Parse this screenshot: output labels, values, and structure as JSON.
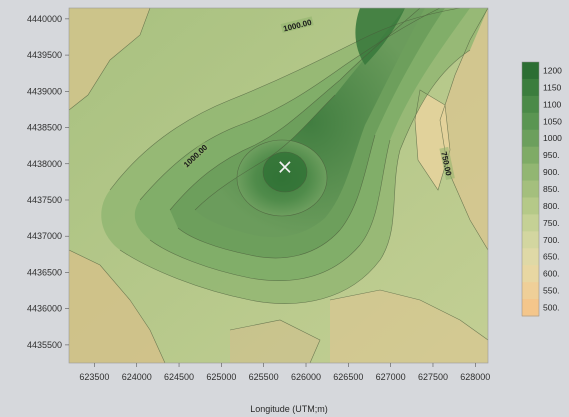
{
  "chart_data": {
    "type": "heatmap",
    "title": "",
    "xlabel": "Longitude (UTM;m)",
    "ylabel": "",
    "x_ticks": [
      "623500",
      "624000",
      "624500",
      "625000",
      "625500",
      "626000",
      "626500",
      "627000",
      "627500",
      "628000"
    ],
    "y_ticks": [
      "4440000",
      "4439500",
      "4439000",
      "4438500",
      "4438000",
      "4437500",
      "4437000",
      "4436500",
      "4436000",
      "4435500"
    ],
    "xlim": [
      623200,
      628150
    ],
    "ylim": [
      4435250,
      4440150
    ],
    "legend": {
      "placement": "right",
      "levels": [
        "1200",
        "1150",
        "1100",
        "1050",
        "1000",
        "950.",
        "900.",
        "850.",
        "800.",
        "750.",
        "700.",
        "650.",
        "600.",
        "550.",
        "500."
      ],
      "colors": [
        "#2c6e33",
        "#3b7d3d",
        "#4b8a48",
        "#5a9552",
        "#6c9f5d",
        "#7fab66",
        "#92b672",
        "#a4bf7d",
        "#b5c988",
        "#c5d195",
        "#d3d6a0",
        "#dfd9a6",
        "#e8d7a2",
        "#efcf98",
        "#f4c68b"
      ]
    },
    "contour_labels": [
      {
        "text": "1000.00",
        "x": 625900,
        "y": 4439900,
        "angle": -14
      },
      {
        "text": "1000.00",
        "x": 624700,
        "y": 4438100,
        "angle": -43
      },
      {
        "text": "750.00",
        "x": 627650,
        "y": 4438000,
        "angle": 78
      }
    ],
    "peak_marker": {
      "symbol": "×",
      "x": 625750,
      "y": 4437950
    }
  }
}
